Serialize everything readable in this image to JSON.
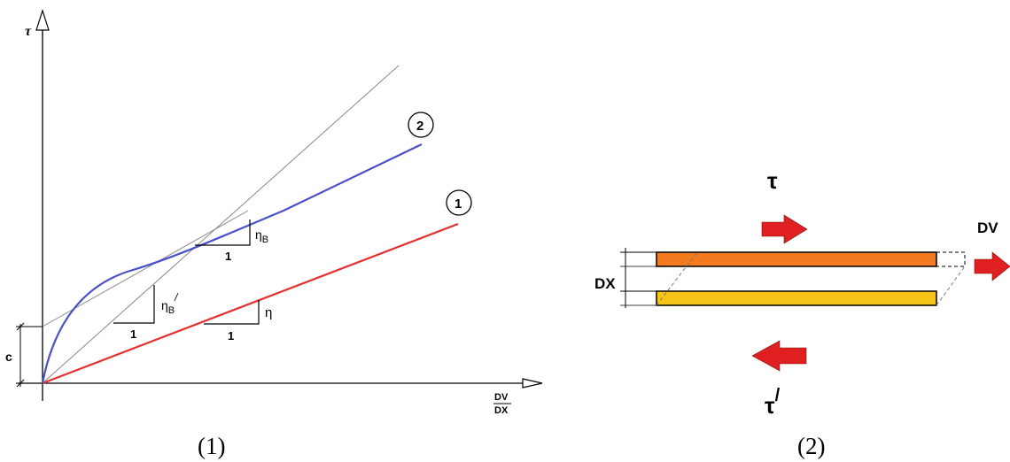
{
  "figure1": {
    "caption": "(1)",
    "y_axis_label": "τ",
    "x_axis_label_num": "DV",
    "x_axis_label_den": "DX",
    "intercept_label": "c",
    "curve1_marker": "1",
    "curve2_marker": "2",
    "slope_eta": {
      "run": "1",
      "rise": "η"
    },
    "slope_eta_b": {
      "run": "1",
      "rise": "η",
      "sub": "B"
    },
    "slope_eta_b_prime": {
      "run": "1",
      "rise": "η",
      "sub": "B",
      "prime": "/"
    },
    "colors": {
      "line1": "#e53030",
      "curve2": "#4a50c8",
      "guide": "#8a8a8a"
    }
  },
  "figure2": {
    "caption": "(2)",
    "tau_top": "τ",
    "tau_bottom": "τ",
    "tau_bottom_prime": "/",
    "dx_label": "DX",
    "dv_label": "DV",
    "colors": {
      "top_plate": "#f47a1f",
      "bottom_plate": "#f6c417",
      "arrow": "#e02020"
    }
  }
}
